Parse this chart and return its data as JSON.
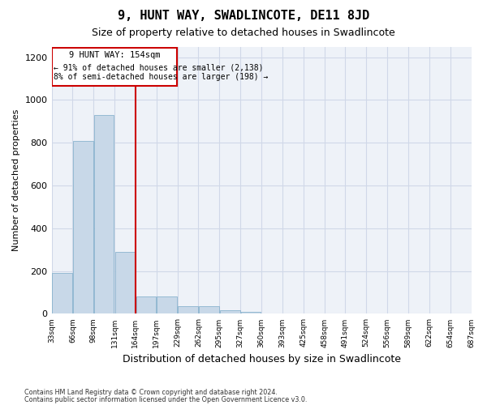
{
  "title": "9, HUNT WAY, SWADLINCOTE, DE11 8JD",
  "subtitle": "Size of property relative to detached houses in Swadlincote",
  "xlabel": "Distribution of detached houses by size in Swadlincote",
  "ylabel": "Number of detached properties",
  "bar_color": "#c8d8e8",
  "bar_edge_color": "#7aaac8",
  "annotation_text_line1": "9 HUNT WAY: 154sqm",
  "annotation_text_line2": "← 91% of detached houses are smaller (2,138)",
  "annotation_text_line3": "8% of semi-detached houses are larger (198) →",
  "footer_line1": "Contains HM Land Registry data © Crown copyright and database right 2024.",
  "footer_line2": "Contains public sector information licensed under the Open Government Licence v3.0.",
  "bin_labels": [
    "33sqm",
    "66sqm",
    "98sqm",
    "131sqm",
    "164sqm",
    "197sqm",
    "229sqm",
    "262sqm",
    "295sqm",
    "327sqm",
    "360sqm",
    "393sqm",
    "425sqm",
    "458sqm",
    "491sqm",
    "524sqm",
    "556sqm",
    "589sqm",
    "622sqm",
    "654sqm",
    "687sqm"
  ],
  "values": [
    190,
    810,
    930,
    290,
    80,
    80,
    35,
    35,
    15,
    10,
    0,
    0,
    0,
    0,
    0,
    0,
    0,
    0,
    0,
    0
  ],
  "ylim": [
    0,
    1250
  ],
  "yticks": [
    0,
    200,
    400,
    600,
    800,
    1000,
    1200
  ],
  "grid_color": "#d0d8e8",
  "background_color": "#eef2f8",
  "red_line_color": "#cc0000",
  "box_color": "#cc0000"
}
